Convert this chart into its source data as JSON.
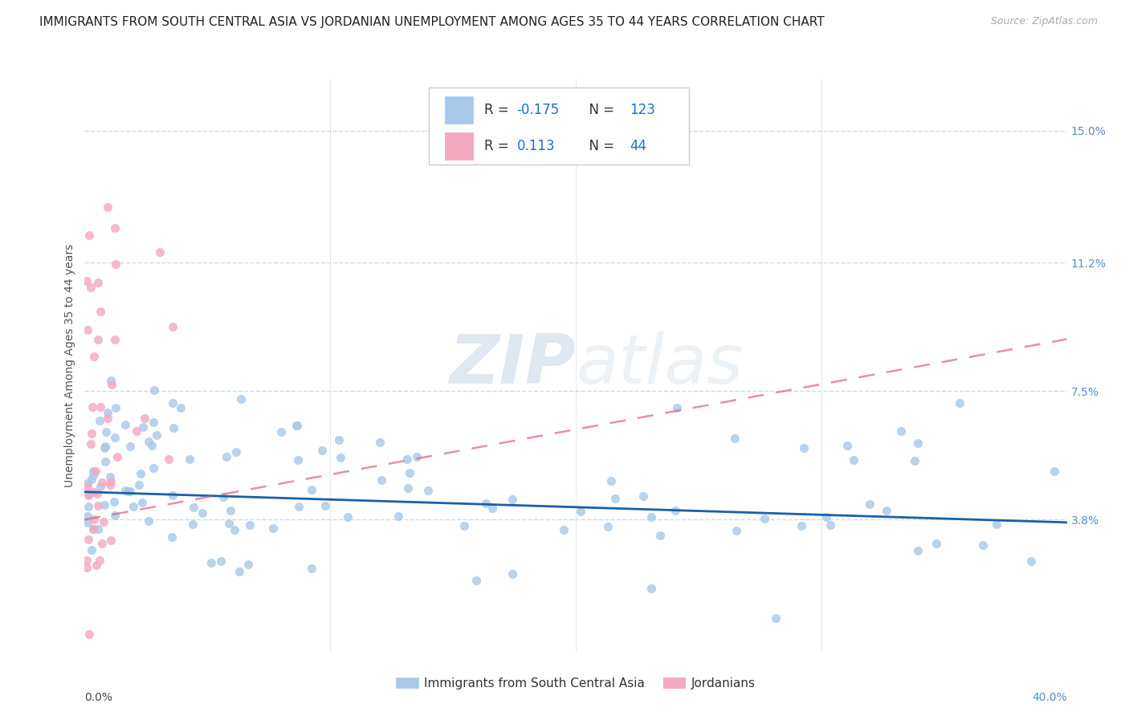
{
  "title": "IMMIGRANTS FROM SOUTH CENTRAL ASIA VS JORDANIAN UNEMPLOYMENT AMONG AGES 35 TO 44 YEARS CORRELATION CHART",
  "source": "Source: ZipAtlas.com",
  "ylabel": "Unemployment Among Ages 35 to 44 years",
  "ytick_values": [
    3.8,
    7.5,
    11.2,
    15.0
  ],
  "xlim": [
    0.0,
    40.0
  ],
  "ylim": [
    0.0,
    16.5
  ],
  "blue_color": "#a8c8e8",
  "pink_color": "#f4a8c0",
  "blue_line_color": "#1a5fa8",
  "pink_line_color": "#e06080",
  "blue_R": -0.175,
  "blue_N": 123,
  "pink_R": 0.113,
  "pink_N": 44,
  "watermark_zip": "ZIP",
  "watermark_atlas": "atlas",
  "background_color": "#ffffff",
  "grid_color": "#c8d8e8",
  "title_fontsize": 11,
  "source_fontsize": 9,
  "tick_fontsize": 10,
  "ylabel_fontsize": 10,
  "legend_fontsize": 12,
  "blue_slope": -0.022,
  "blue_intercept": 4.6,
  "pink_slope_full": 0.13,
  "pink_intercept_full": 3.8,
  "legend_R_color": "#333333",
  "legend_val_color": "#1a6fd4",
  "legend_N_color": "#333333"
}
